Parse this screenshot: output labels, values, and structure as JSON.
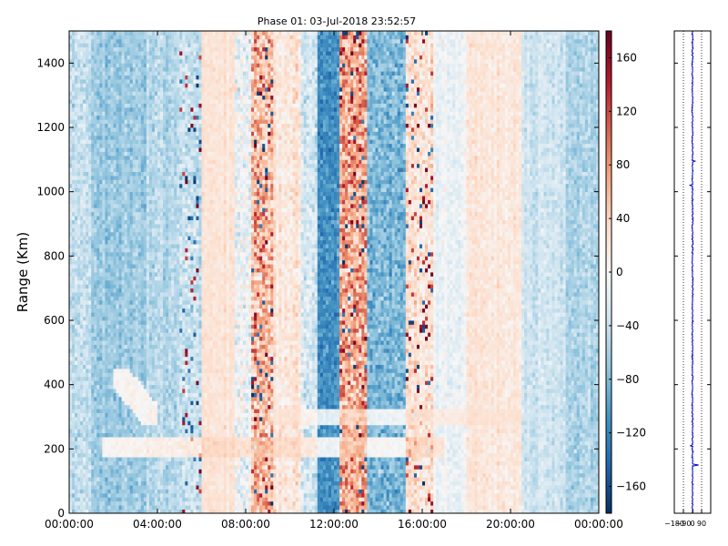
{
  "chart_data": [
    {
      "type": "heatmap",
      "title": "Phase 01: 03-Jul-2018 23:52:57",
      "xlabel": "",
      "ylabel": "Range (Km)",
      "x_tick_labels": [
        "00:00:00",
        "04:00:00",
        "08:00:00",
        "12:00:00",
        "16:00:00",
        "20:00:00",
        "00:00:00"
      ],
      "x_range_hours": [
        0,
        24
      ],
      "ylim": [
        0,
        1500
      ],
      "y_ticks": [
        0,
        200,
        400,
        600,
        800,
        1000,
        1200,
        1400
      ],
      "color_range": [
        -180,
        180
      ],
      "colormap": "RdBu_r",
      "colorbar_ticks": [
        -160,
        -120,
        -80,
        -40,
        0,
        40,
        80,
        120,
        160
      ],
      "colorbar_tick_labels": [
        "−160",
        "−120",
        "−80",
        "−40",
        "0",
        "40",
        "80",
        "120",
        "160"
      ],
      "grid": false,
      "column_bands_hours": [
        {
          "from": 0.0,
          "to": 1.0,
          "mean": -40,
          "spread": 40
        },
        {
          "from": 1.0,
          "to": 3.5,
          "mean": -65,
          "spread": 35
        },
        {
          "from": 3.5,
          "to": 5.0,
          "mean": -50,
          "spread": 35
        },
        {
          "from": 5.0,
          "to": 6.0,
          "mean": -40,
          "spread": 50,
          "speckled": true
        },
        {
          "from": 6.0,
          "to": 7.5,
          "mean": 25,
          "spread": 20
        },
        {
          "from": 7.5,
          "to": 8.2,
          "mean": -10,
          "spread": 60
        },
        {
          "from": 8.2,
          "to": 9.3,
          "mean": 60,
          "spread": 90,
          "speckled": true
        },
        {
          "from": 9.3,
          "to": 10.5,
          "mean": 20,
          "spread": 40
        },
        {
          "from": 10.5,
          "to": 11.2,
          "mean": -30,
          "spread": 50
        },
        {
          "from": 11.2,
          "to": 12.3,
          "mean": -110,
          "spread": 40
        },
        {
          "from": 12.3,
          "to": 13.5,
          "mean": 70,
          "spread": 90,
          "speckled": true
        },
        {
          "from": 13.5,
          "to": 15.2,
          "mean": -80,
          "spread": 50
        },
        {
          "from": 15.2,
          "to": 16.5,
          "mean": 25,
          "spread": 50,
          "speckled": true
        },
        {
          "from": 16.5,
          "to": 18.0,
          "mean": -10,
          "spread": 30
        },
        {
          "from": 18.0,
          "to": 20.5,
          "mean": 20,
          "spread": 25
        },
        {
          "from": 20.5,
          "to": 22.5,
          "mean": -35,
          "spread": 30
        },
        {
          "from": 22.5,
          "to": 24.0,
          "mean": -55,
          "spread": 35
        }
      ],
      "features": [
        {
          "kind": "horizontal_layer",
          "x_hours": [
            1.5,
            17.0
          ],
          "y_km": [
            170,
            240
          ],
          "value": 45
        },
        {
          "kind": "horizontal_layer",
          "x_hours": [
            9.0,
            20.5
          ],
          "y_km": [
            270,
            330
          ],
          "value": 30
        },
        {
          "kind": "diagonal_patch",
          "x_hours": [
            2.0,
            4.0
          ],
          "y_km": [
            280,
            450
          ],
          "value": 5
        }
      ]
    },
    {
      "type": "line",
      "title": "",
      "xlabel": "",
      "ylabel": "",
      "xlim": [
        -180,
        180
      ],
      "ylim": [
        0,
        1500
      ],
      "x_tick_labels": [
        "−180",
        "−90",
        "0",
        "90"
      ],
      "x_ticks": [
        -180,
        -90,
        0,
        90
      ],
      "grid_vertical_dotted": [
        -90,
        0,
        90
      ],
      "line_color": "#0000cc",
      "profile_mean": 0,
      "profile_spread": 10,
      "spikes": [
        {
          "y": 150,
          "x": 60
        },
        {
          "y": 1020,
          "x": -25
        },
        {
          "y": 1095,
          "x": 25
        },
        {
          "y": 210,
          "x": -20
        }
      ]
    }
  ]
}
